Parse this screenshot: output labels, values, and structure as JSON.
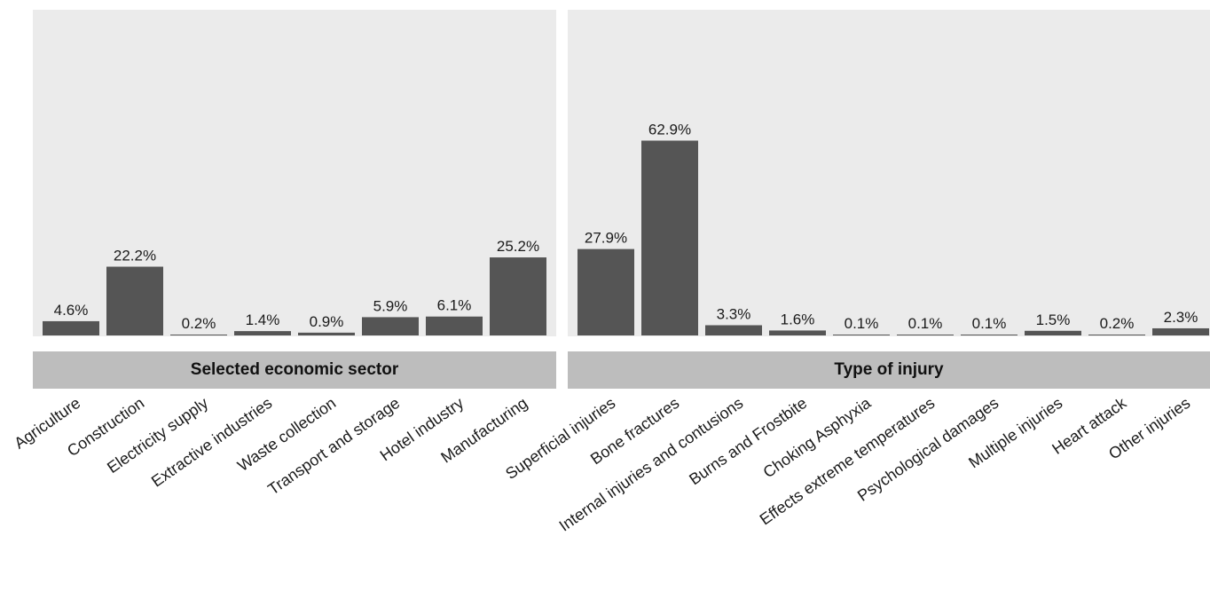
{
  "chart_data": [
    {
      "type": "bar",
      "panel_title": "Selected economic sector",
      "categories": [
        "Agriculture",
        "Construction",
        "Electricity supply",
        "Extractive industries",
        "Waste collection",
        "Transport and storage",
        "Hotel industry",
        "Manufacturing"
      ],
      "values": [
        4.6,
        22.2,
        0.2,
        1.4,
        0.9,
        5.9,
        6.1,
        25.2
      ],
      "labels": [
        "4.6%",
        "22.2%",
        "0.2%",
        "1.4%",
        "0.9%",
        "5.9%",
        "6.1%",
        "25.2%"
      ],
      "ylim": [
        0,
        66
      ],
      "grid": false,
      "bar_color": "#555555"
    },
    {
      "type": "bar",
      "panel_title": "Type of injury",
      "categories": [
        "Superficial injuries",
        "Bone fractures",
        "Internal injuries and contusions",
        "Burns and Frostbite",
        "Choking Asphyxia",
        "Effects extreme temperatures",
        "Psychological damages",
        "Multiple injuries",
        "Heart attack",
        "Other injuries"
      ],
      "values": [
        27.9,
        62.9,
        3.3,
        1.6,
        0.1,
        0.1,
        0.1,
        1.5,
        0.2,
        2.3
      ],
      "labels": [
        "27.9%",
        "62.9%",
        "3.3%",
        "1.6%",
        "0.1%",
        "0.1%",
        "0.1%",
        "1.5%",
        "0.2%",
        "2.3%"
      ],
      "ylim": [
        0,
        66
      ],
      "grid": false,
      "bar_color": "#555555"
    }
  ],
  "colors": {
    "panel_background": "#ebebeb",
    "strip_background": "#bdbdbd"
  }
}
